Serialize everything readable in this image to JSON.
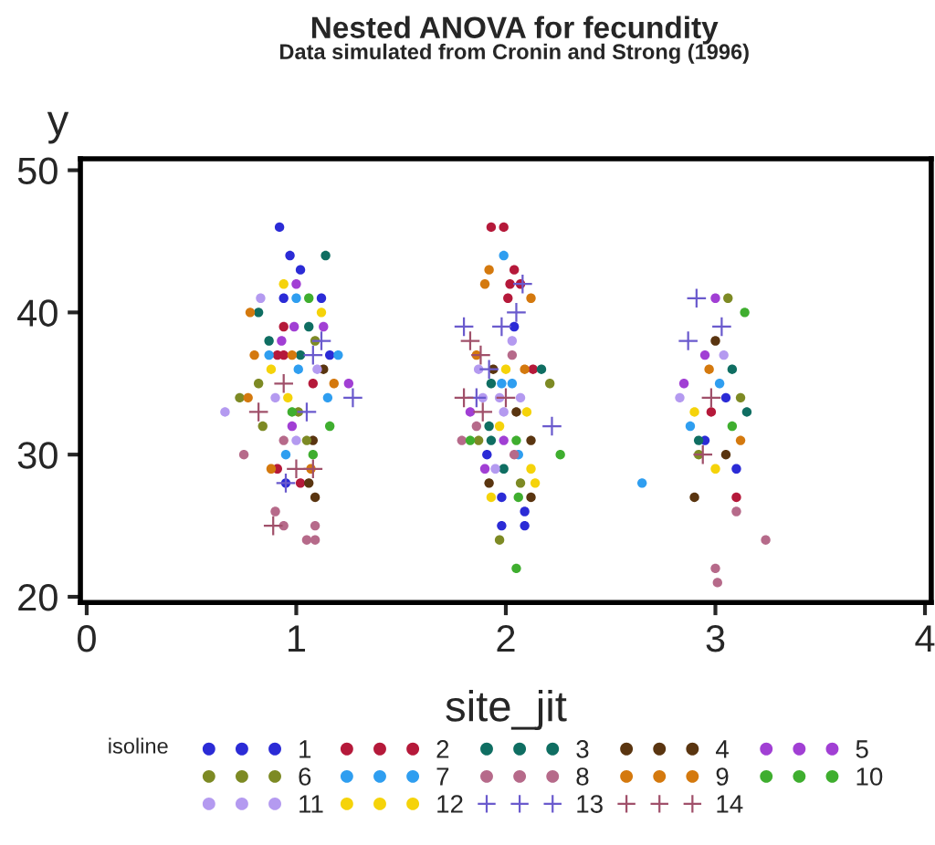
{
  "chart_data": {
    "type": "scatter",
    "title": "Nested ANOVA for fecundity",
    "subtitle": "Data simulated from Cronin and Strong (1996)",
    "xlabel": "site_jit",
    "ylabel": "y",
    "legend_title": "isoline",
    "legend": "bottom",
    "grid": false,
    "xlim": [
      -0.03,
      4.03
    ],
    "ylim": [
      19.6,
      50.8
    ],
    "xticks": [
      0,
      1,
      2,
      3,
      4
    ],
    "yticks": [
      20,
      30,
      40,
      50
    ],
    "series": [
      {
        "name": "1",
        "color": "#2b2bd6",
        "marker": "circle",
        "x": [
          0.92,
          0.97,
          1.02,
          0.94,
          1.12,
          1.16,
          0.95,
          2.04,
          2.09,
          1.98,
          2.09,
          1.98,
          1.91,
          3.05,
          2.95,
          3.1
        ],
        "values": [
          46,
          44,
          43,
          41,
          41,
          37,
          28,
          39,
          26,
          25,
          25,
          27,
          30,
          34,
          31,
          29
        ]
      },
      {
        "name": "2",
        "color": "#b5193a",
        "marker": "circle",
        "x": [
          0.91,
          0.94,
          1.08,
          1.02,
          0.91,
          0.94,
          1.93,
          1.99,
          2.04,
          2.02,
          2.07,
          2.01,
          2.13,
          2.98,
          3.1
        ],
        "values": [
          37,
          37,
          35,
          28,
          29,
          39,
          46,
          46,
          43,
          42,
          42,
          41,
          36,
          33,
          27
        ]
      },
      {
        "name": "3",
        "color": "#0f6e62",
        "marker": "circle",
        "x": [
          1.14,
          0.82,
          0.87,
          1.06,
          1.02,
          1.93,
          1.92,
          1.93,
          1.99,
          2.17,
          3.08,
          2.92,
          3.15
        ],
        "values": [
          44,
          40,
          38,
          39,
          37,
          35,
          32,
          31,
          29,
          36,
          36,
          31,
          33
        ]
      },
      {
        "name": "4",
        "color": "#5a3510",
        "marker": "circle",
        "x": [
          1.09,
          1.06,
          1.08,
          1.13,
          1.94,
          2.05,
          2.12,
          1.92,
          2.12,
          3.0,
          3.05,
          2.9
        ],
        "values": [
          27,
          28,
          31,
          36,
          36,
          33,
          31,
          28,
          27,
          38,
          30,
          27
        ]
      },
      {
        "name": "5",
        "color": "#a13fd4",
        "marker": "circle",
        "x": [
          1.0,
          0.99,
          1.13,
          1.25,
          0.98,
          0.93,
          1.99,
          1.9,
          1.83,
          3.0,
          2.95,
          2.85
        ],
        "values": [
          42,
          39,
          39,
          35,
          32,
          38,
          31,
          29,
          33,
          41,
          37,
          35
        ]
      },
      {
        "name": "6",
        "color": "#7d8a24",
        "marker": "circle",
        "x": [
          0.82,
          0.84,
          0.73,
          1.01,
          1.05,
          1.09,
          2.21,
          1.87,
          2.07,
          1.97,
          3.06,
          3.12,
          2.92
        ],
        "values": [
          35,
          32,
          34,
          33,
          31,
          38,
          35,
          31,
          28,
          24,
          41,
          34,
          30
        ]
      },
      {
        "name": "7",
        "color": "#2f9ef0",
        "marker": "circle",
        "x": [
          1.0,
          0.87,
          1.2,
          1.01,
          0.95,
          1.15,
          1.99,
          1.98,
          2.03,
          2.06,
          2.65,
          3.02,
          2.88
        ],
        "values": [
          41,
          37,
          37,
          36,
          30,
          34,
          44,
          35,
          35,
          30,
          28,
          35,
          32
        ]
      },
      {
        "name": "8",
        "color": "#b66a8a",
        "marker": "circle",
        "x": [
          0.9,
          0.94,
          1.05,
          1.09,
          0.75,
          0.94,
          1.09,
          2.03,
          1.79,
          1.86,
          2.04,
          3.0,
          3.01,
          3.24,
          3.1
        ],
        "values": [
          26,
          25,
          24,
          24,
          30,
          31,
          25,
          37,
          31,
          32,
          30,
          22,
          21,
          24,
          26
        ]
      },
      {
        "name": "9",
        "color": "#d4790e",
        "marker": "circle",
        "x": [
          0.78,
          0.8,
          0.98,
          1.18,
          0.77,
          1.07,
          0.88,
          1.92,
          1.9,
          2.12,
          1.86,
          2.09,
          2.97,
          3.12
        ],
        "values": [
          40,
          37,
          37,
          35,
          34,
          29,
          29,
          43,
          42,
          41,
          37,
          36,
          36,
          31
        ]
      },
      {
        "name": "10",
        "color": "#3fae2f",
        "marker": "circle",
        "x": [
          1.06,
          1.16,
          1.08,
          0.98,
          1.83,
          2.05,
          2.26,
          2.06,
          2.05,
          3.14,
          3.08
        ],
        "values": [
          41,
          32,
          30,
          33,
          31,
          31,
          30,
          27,
          22,
          40,
          32
        ]
      },
      {
        "name": "11",
        "color": "#b49af0",
        "marker": "circle",
        "x": [
          0.83,
          0.66,
          1.1,
          1.0,
          0.9,
          2.03,
          1.87,
          1.89,
          1.97,
          2.07,
          1.99,
          1.95,
          2.83,
          3.04
        ],
        "values": [
          41,
          33,
          36,
          31,
          34,
          38,
          36,
          34,
          34,
          34,
          33,
          29,
          34,
          37
        ]
      },
      {
        "name": "12",
        "color": "#f5d30a",
        "marker": "circle",
        "x": [
          0.94,
          1.12,
          0.88,
          0.96,
          2.0,
          2.1,
          1.97,
          2.12,
          2.14,
          1.93,
          2.9,
          3.0
        ],
        "values": [
          42,
          40,
          36,
          34,
          36,
          33,
          32,
          29,
          28,
          27,
          33,
          29
        ]
      },
      {
        "name": "13",
        "color": "#6a5acd",
        "marker": "cross",
        "x": [
          1.12,
          1.27,
          1.05,
          0.95,
          1.08,
          2.05,
          1.8,
          1.98,
          2.08,
          1.86,
          2.22,
          1.92,
          2.91,
          2.87,
          3.03
        ],
        "values": [
          38,
          34,
          33,
          28,
          37,
          40,
          39,
          39,
          42,
          34,
          32,
          36,
          41,
          38,
          39
        ]
      },
      {
        "name": "14",
        "color": "#a0506a",
        "marker": "cross",
        "x": [
          0.94,
          0.82,
          0.89,
          1.0,
          1.08,
          1.83,
          1.88,
          1.8,
          1.89,
          2.0,
          2.98,
          2.94
        ],
        "values": [
          35,
          33,
          25,
          29,
          29,
          38,
          37,
          34,
          33,
          34,
          34,
          30
        ]
      }
    ]
  }
}
